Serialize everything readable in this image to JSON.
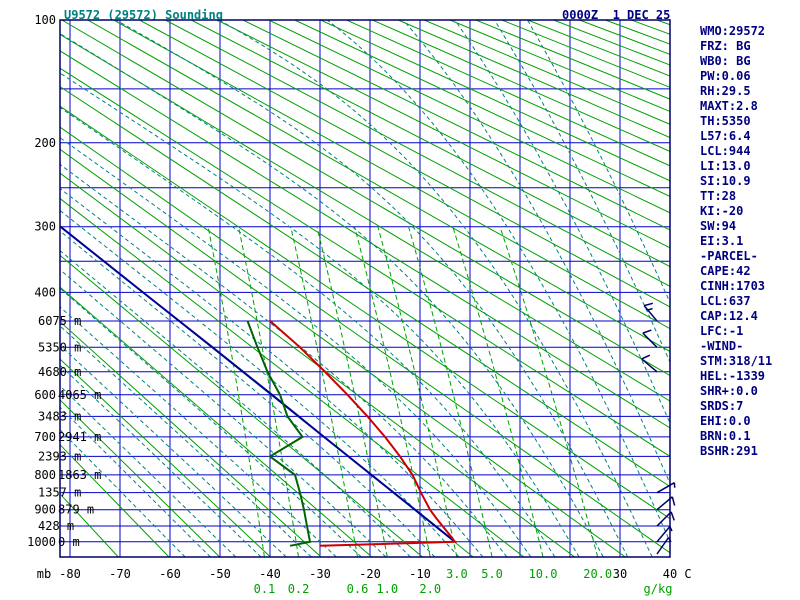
{
  "header": {
    "title": "U9572 (29572) Sounding",
    "datetime": "0000Z  1 DEC 25"
  },
  "stats": {
    "lines": [
      "WMO:29572",
      "FRZ: BG",
      "WB0: BG",
      "PW:0.06",
      "RH:29.5",
      "MAXT:2.8",
      "TH:5350",
      "L57:6.4",
      "LCL:944",
      "LI:13.0",
      "SI:10.9",
      "TT:28",
      "KI:-20",
      "SW:94",
      "EI:3.1",
      "-PARCEL-",
      "CAPE:42",
      "CINH:1703",
      "LCL:637",
      "CAP:12.4",
      "LFC:-1",
      "-WIND-",
      "STM:318/11",
      "HEL:-1339",
      "SHR+:0.0",
      "SRDS:7",
      "EHI:0.0",
      "BRN:0.1",
      "BSHR:291"
    ]
  },
  "chart_data": {
    "type": "stuve-sounding",
    "title": "U9572 (29572) Sounding",
    "axes": {
      "pressure_unit": "mb",
      "pressure_top": 100,
      "pressure_bottom": 1050,
      "pressure_grid": {
        "start": 100,
        "end": 1000,
        "step": 50
      },
      "pressure_ticks": [
        100,
        200,
        300,
        400,
        600,
        700,
        800,
        900,
        1000
      ],
      "temp_unit": "C",
      "temp_min": -82,
      "temp_max": 40,
      "temp_grid": {
        "start": -80,
        "end": 40,
        "step": 10
      },
      "temp_ticks": [
        -80,
        -70,
        -60,
        -50,
        -40,
        -30,
        -20,
        -10,
        30,
        40
      ],
      "height_labels": [
        {
          "p": 450,
          "label": "6075 m"
        },
        {
          "p": 500,
          "label": "5350 m"
        },
        {
          "p": 550,
          "label": "4680 m"
        },
        {
          "p": 600,
          "label": "4065 m"
        },
        {
          "p": 650,
          "label": "3483 m"
        },
        {
          "p": 700,
          "label": "2941 m"
        },
        {
          "p": 750,
          "label": "2393 m"
        },
        {
          "p": 800,
          "label": "1863 m"
        },
        {
          "p": 850,
          "label": "1357 m"
        },
        {
          "p": 900,
          "label": "879 m"
        },
        {
          "p": 950,
          "label": "428 m"
        },
        {
          "p": 1000,
          "label": "0 m"
        }
      ]
    },
    "dry_adiabats": {
      "theta_start": 200,
      "theta_end": 640,
      "step": 10
    },
    "moist_adiabats": {
      "thetaw_start": -60,
      "thetaw_end": 60,
      "step": 5
    },
    "mixing_ratio_lines": {
      "values": [
        0.1,
        0.2,
        0.6,
        1.0,
        2.0,
        3.0,
        5.0,
        10.0,
        20.0
      ],
      "label_rows": [
        2,
        2,
        2,
        2,
        2,
        1,
        1,
        1,
        1
      ],
      "unit": "g/kg",
      "top_pressure": 300
    },
    "series": {
      "temperature": [
        [
          1013,
          -30
        ],
        [
          1000,
          -3
        ],
        [
          975,
          -4.2
        ],
        [
          950,
          -5.5
        ],
        [
          925,
          -6.8
        ],
        [
          900,
          -8
        ],
        [
          850,
          -9.8
        ],
        [
          800,
          -11.5
        ],
        [
          750,
          -14
        ],
        [
          700,
          -17
        ],
        [
          650,
          -20.5
        ],
        [
          600,
          -24.5
        ],
        [
          550,
          -29
        ],
        [
          500,
          -34
        ],
        [
          450,
          -40
        ]
      ],
      "dewpoint": [
        [
          1013,
          -36
        ],
        [
          1000,
          -32
        ],
        [
          975,
          -32.3
        ],
        [
          950,
          -32.6
        ],
        [
          925,
          -32.9
        ],
        [
          900,
          -33.2
        ],
        [
          850,
          -34
        ],
        [
          800,
          -35
        ],
        [
          750,
          -40
        ],
        [
          700,
          -33.5
        ],
        [
          650,
          -36.5
        ],
        [
          600,
          -38
        ],
        [
          550,
          -40.5
        ],
        [
          500,
          -42.5
        ],
        [
          450,
          -44.5
        ]
      ],
      "parcel": [
        [
          1000,
          -3
        ],
        [
          900,
          -11
        ],
        [
          800,
          -19.7
        ],
        [
          700,
          -29.2
        ],
        [
          600,
          -39.6
        ],
        [
          500,
          -51.5
        ],
        [
          400,
          -65.4
        ],
        [
          300,
          -81.9
        ]
      ]
    },
    "wind_barbs": [
      {
        "p": 450,
        "dir": 320,
        "spd": 15
      },
      {
        "p": 500,
        "dir": 315,
        "spd": 10
      },
      {
        "p": 550,
        "dir": 310,
        "spd": 10
      },
      {
        "p": 850,
        "dir": 60,
        "spd": 5
      },
      {
        "p": 900,
        "dir": 50,
        "spd": 10
      },
      {
        "p": 950,
        "dir": 45,
        "spd": 10
      },
      {
        "p": 1000,
        "dir": 40,
        "spd": 5
      },
      {
        "p": 1040,
        "dir": 35,
        "spd": 5
      }
    ],
    "colors": {
      "grid_blue": "#0000cc",
      "frame": "#000066",
      "dry_adiabat_green": "#00a000",
      "moist_adiabat_teal": "#008080",
      "mixing_ratio_green": "#00a000",
      "temperature_red": "#cc0000",
      "dewpoint_green": "#006400",
      "parcel_blue": "#000099",
      "wind_barb": "#000066",
      "axis_text": "#000000",
      "mixing_label_green": "#00a000",
      "title_teal": "#008080",
      "stats_navy": "#000080"
    }
  }
}
